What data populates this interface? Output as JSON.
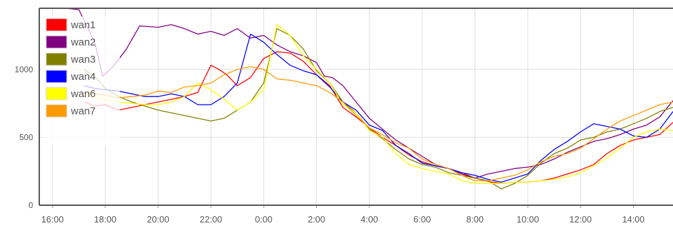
{
  "chart_data": {
    "type": "line",
    "title": "",
    "xlabel": "",
    "ylabel": "",
    "x_ticks": [
      "16:00",
      "18:00",
      "20:00",
      "22:00",
      "0:00",
      "2:00",
      "4:00",
      "6:00",
      "8:00",
      "10:00",
      "12:00",
      "14:00"
    ],
    "y_ticks": [
      0,
      500,
      1000
    ],
    "ylim": [
      0,
      1450
    ],
    "xlim_hours": [
      15.5,
      39.5
    ],
    "grid": true,
    "legend_position": "top-left",
    "series": [
      {
        "name": "wan1",
        "color": "#ff0000",
        "x": [
          17.2,
          17.6,
          18,
          18.5,
          19,
          19.5,
          20,
          20.5,
          21,
          21.5,
          22,
          22.3,
          22.6,
          23,
          23.5,
          24,
          24.5,
          25,
          25.5,
          26,
          26.5,
          27,
          27.5,
          28,
          28.5,
          29,
          29.5,
          30,
          30.5,
          31,
          31.5,
          32,
          32.5,
          33,
          33.5,
          34,
          34.5,
          35,
          35.5,
          36,
          36.5,
          37,
          37.5,
          38,
          38.5,
          39,
          39.5
        ],
        "values": [
          760,
          730,
          740,
          700,
          720,
          740,
          760,
          780,
          800,
          830,
          1030,
          1000,
          960,
          880,
          940,
          1080,
          1130,
          1120,
          1060,
          960,
          880,
          720,
          650,
          570,
          500,
          440,
          370,
          320,
          290,
          270,
          240,
          200,
          175,
          160,
          170,
          170,
          180,
          200,
          230,
          260,
          300,
          380,
          440,
          480,
          500,
          520,
          610
        ]
      },
      {
        "name": "wan2",
        "color": "#800080",
        "x": [
          16.5,
          17,
          17.6,
          17.9,
          18.3,
          18.8,
          19.3,
          20,
          20.5,
          21,
          21.5,
          22,
          22.5,
          23,
          23.5,
          24,
          24.5,
          25,
          25.5,
          26,
          26.3,
          26.6,
          27,
          27.5,
          28,
          28.5,
          29,
          29.5,
          30,
          30.5,
          31,
          31.5,
          32,
          32.5,
          33,
          33.5,
          34,
          34.5,
          35,
          35.5,
          36,
          36.5,
          37,
          37.5,
          38,
          38.5,
          39,
          39.5
        ],
        "values": [
          1450,
          1440,
          1200,
          950,
          1020,
          1150,
          1320,
          1310,
          1330,
          1300,
          1260,
          1280,
          1250,
          1300,
          1230,
          1250,
          1180,
          1130,
          1100,
          1050,
          950,
          940,
          880,
          760,
          640,
          560,
          480,
          420,
          360,
          300,
          270,
          230,
          200,
          230,
          250,
          270,
          280,
          300,
          340,
          390,
          430,
          470,
          490,
          520,
          560,
          590,
          650,
          770
        ]
      },
      {
        "name": "wan3",
        "color": "#808000",
        "x": [
          17.2,
          17.6,
          18,
          18.5,
          19,
          19.5,
          20,
          20.5,
          21,
          21.5,
          22,
          22.5,
          23,
          23.5,
          24,
          24.5,
          25,
          25.5,
          26,
          26.5,
          27,
          27.5,
          28,
          28.5,
          29,
          29.5,
          30,
          30.5,
          31,
          31.5,
          32,
          32.5,
          33,
          33.5,
          34,
          34.5,
          35,
          35.5,
          36,
          36.5,
          37,
          37.5,
          38,
          38.5,
          39,
          39.5
        ],
        "values": [
          1000,
          950,
          860,
          800,
          760,
          730,
          700,
          680,
          660,
          640,
          620,
          640,
          700,
          760,
          900,
          1300,
          1250,
          1150,
          990,
          900,
          760,
          680,
          560,
          490,
          410,
          340,
          300,
          280,
          240,
          220,
          200,
          180,
          120,
          160,
          220,
          310,
          380,
          420,
          480,
          500,
          540,
          560,
          600,
          640,
          690,
          720
        ]
      },
      {
        "name": "wan4",
        "color": "#0000ff",
        "x": [
          17.2,
          17.6,
          18,
          18.5,
          19,
          19.5,
          20,
          20.5,
          21,
          21.5,
          22,
          22.5,
          23,
          23.5,
          24,
          24.5,
          25,
          25.5,
          26,
          26.5,
          27,
          27.5,
          28,
          28.5,
          29,
          29.5,
          30,
          30.5,
          31,
          31.5,
          32,
          32.5,
          33,
          33.5,
          34,
          34.5,
          35,
          35.5,
          36,
          36.5,
          37,
          37.5,
          38,
          38.5,
          39,
          39.5
        ],
        "values": [
          880,
          860,
          850,
          840,
          820,
          800,
          800,
          820,
          800,
          740,
          740,
          800,
          900,
          1260,
          1200,
          1110,
          1030,
          990,
          960,
          870,
          760,
          700,
          590,
          550,
          440,
          380,
          310,
          290,
          270,
          240,
          220,
          190,
          170,
          200,
          230,
          330,
          410,
          470,
          540,
          600,
          580,
          560,
          510,
          500,
          560,
          690
        ]
      },
      {
        "name": "wan6",
        "color": "#ffff00",
        "x": [
          17.2,
          17.6,
          18,
          18.5,
          19,
          19.5,
          20,
          20.5,
          21,
          21.5,
          22,
          22.5,
          23,
          23.5,
          24,
          24.5,
          25,
          25.5,
          26,
          26.5,
          27,
          27.5,
          28,
          28.5,
          29,
          29.5,
          30,
          30.5,
          31,
          31.5,
          32,
          32.5,
          33,
          33.5,
          34,
          34.5,
          35,
          35.5,
          36,
          36.5,
          37,
          37.5,
          38,
          38.5,
          39,
          39.5
        ],
        "values": [
          810,
          800,
          780,
          760,
          750,
          740,
          740,
          760,
          800,
          900,
          850,
          780,
          700,
          760,
          850,
          1330,
          1250,
          1100,
          1000,
          900,
          740,
          680,
          550,
          500,
          380,
          300,
          270,
          250,
          230,
          180,
          160,
          160,
          160,
          170,
          170,
          180,
          190,
          210,
          240,
          290,
          350,
          420,
          500,
          540,
          560,
          550
        ]
      },
      {
        "name": "wan7",
        "color": "#ff9900",
        "x": [
          17.2,
          17.6,
          18,
          18.5,
          19,
          19.5,
          20,
          20.5,
          21,
          21.5,
          22,
          22.5,
          23,
          23.5,
          24,
          24.5,
          25,
          25.5,
          26,
          26.5,
          27,
          27.5,
          28,
          28.5,
          29,
          29.5,
          30,
          30.5,
          31,
          31.5,
          32,
          32.5,
          33,
          33.5,
          34,
          34.5,
          35,
          35.5,
          36,
          36.5,
          37,
          37.5,
          38,
          38.5,
          39,
          39.5
        ],
        "values": [
          830,
          820,
          810,
          790,
          800,
          810,
          840,
          830,
          870,
          880,
          900,
          960,
          1000,
          1020,
          1000,
          930,
          920,
          900,
          880,
          830,
          760,
          660,
          570,
          520,
          460,
          420,
          340,
          300,
          270,
          220,
          180,
          180,
          200,
          220,
          260,
          320,
          360,
          380,
          420,
          490,
          560,
          620,
          660,
          700,
          740,
          760
        ]
      }
    ]
  }
}
